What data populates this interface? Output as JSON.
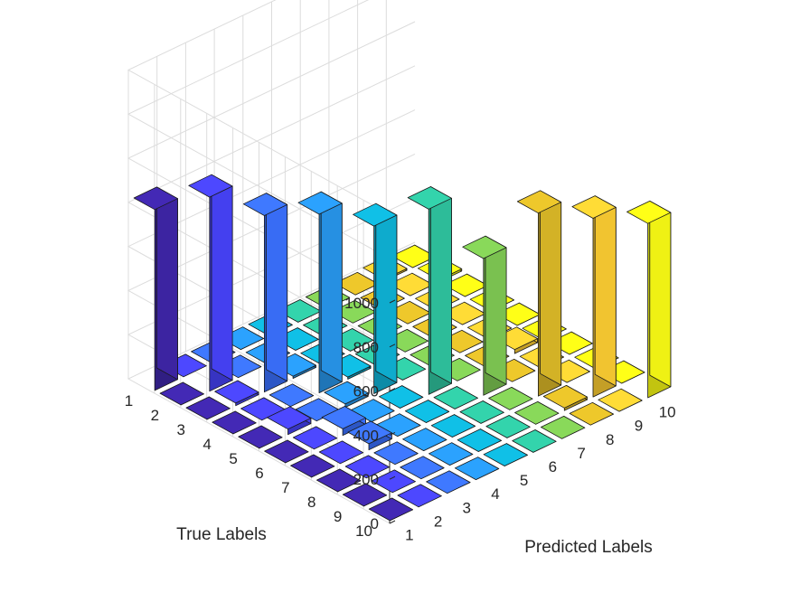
{
  "chart_data": {
    "type": "bar3",
    "title": "",
    "xlabel": "Predicted Labels",
    "ylabel": "True Labels",
    "zlabel": "",
    "x_categories": [
      "1",
      "2",
      "3",
      "4",
      "5",
      "6",
      "7",
      "8",
      "9",
      "10"
    ],
    "y_categories": [
      "1",
      "2",
      "3",
      "4",
      "5",
      "6",
      "7",
      "8",
      "9",
      "10"
    ],
    "zlim": [
      0,
      1000
    ],
    "zticks": [
      "0",
      "200",
      "400",
      "600",
      "800",
      "1000"
    ],
    "grid": true,
    "colormap": "parula",
    "column_colors": [
      "#3e26a8",
      "#4743f9",
      "#3a70fe",
      "#2896eb",
      "#0fb2d6",
      "#2fc49f",
      "#7fc953",
      "#dcb928",
      "#fbcc32",
      "#f9fb15"
    ],
    "matrix": [
      [
        820,
        0,
        0,
        0,
        0,
        0,
        0,
        0,
        0,
        0
      ],
      [
        0,
        880,
        0,
        0,
        0,
        0,
        0,
        0,
        0,
        0
      ],
      [
        0,
        0,
        800,
        0,
        0,
        0,
        0,
        0,
        0,
        0
      ],
      [
        0,
        0,
        0,
        810,
        0,
        0,
        0,
        0,
        0,
        0
      ],
      [
        0,
        0,
        0,
        0,
        760,
        0,
        0,
        0,
        0,
        0
      ],
      [
        0,
        0,
        0,
        0,
        0,
        840,
        0,
        0,
        0,
        0
      ],
      [
        0,
        0,
        0,
        0,
        0,
        0,
        620,
        0,
        0,
        0
      ],
      [
        0,
        0,
        0,
        0,
        0,
        0,
        0,
        830,
        0,
        0
      ],
      [
        0,
        0,
        0,
        0,
        0,
        0,
        0,
        0,
        810,
        0
      ],
      [
        0,
        0,
        0,
        0,
        0,
        0,
        0,
        0,
        0,
        790
      ]
    ],
    "small_values": [
      {
        "true": 5,
        "pred": 2,
        "value": 25
      },
      {
        "true": 6,
        "pred": 3,
        "value": 30
      },
      {
        "true": 7,
        "pred": 3,
        "value": 28
      },
      {
        "true": 4,
        "pred": 5,
        "value": 10
      },
      {
        "true": 5,
        "pred": 4,
        "value": 15
      },
      {
        "true": 3,
        "pred": 2,
        "value": 12
      },
      {
        "true": 3,
        "pred": 4,
        "value": 10
      },
      {
        "true": 6,
        "pred": 9,
        "value": 18
      },
      {
        "true": 9,
        "pred": 8,
        "value": 12
      },
      {
        "true": 2,
        "pred": 10,
        "value": 10
      },
      {
        "true": 1,
        "pred": 9,
        "value": 8
      }
    ]
  }
}
